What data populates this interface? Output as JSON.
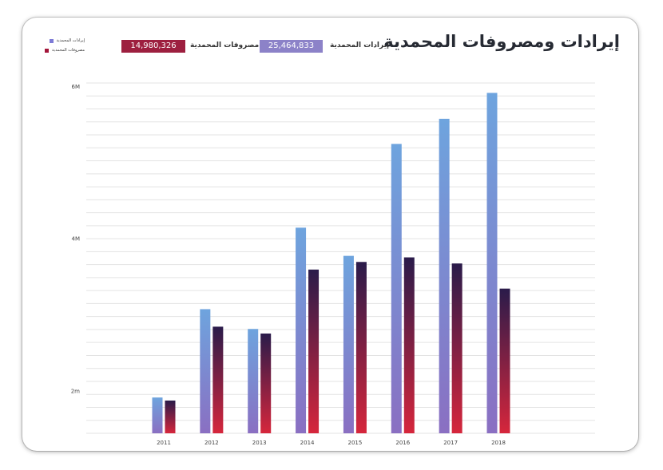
{
  "header": {
    "title": "إيرادات ومصروفات المحمدية",
    "kpi_revenue_label": "إيرادات المحمدية",
    "kpi_revenue_value": "25,464,833",
    "kpi_expense_label": "مصروفات المحمدية",
    "kpi_expense_value": "14,980,326"
  },
  "legend": {
    "items": [
      {
        "label": "إيرادات المحمدية",
        "color": "#7d7bd6"
      },
      {
        "label": "مصروفات المحمدية",
        "color": "#a3153a"
      }
    ]
  },
  "colors": {
    "revenue_top": "#6ea4de",
    "revenue_bottom": "#8a6fc2",
    "expense_top": "#2a1b4a",
    "expense_bottom": "#d6263c"
  },
  "chart_data": {
    "type": "bar",
    "categories": [
      "2011",
      "2012",
      "2013",
      "2014",
      "2015",
      "2016",
      "2017",
      "2018"
    ],
    "series": [
      {
        "name": "إيرادات المحمدية",
        "values": [
          1.92,
          3.08,
          2.82,
          4.15,
          3.78,
          5.25,
          5.58,
          5.92
        ]
      },
      {
        "name": "مصروفات المحمدية",
        "values": [
          1.88,
          2.85,
          2.76,
          3.6,
          3.7,
          3.76,
          3.68,
          3.35
        ]
      }
    ],
    "yticks": [
      {
        "value": 2,
        "label": "2m"
      },
      {
        "value": 4,
        "label": "4M"
      },
      {
        "value": 6,
        "label": "6M"
      }
    ],
    "ylim": [
      1.45,
      6.05
    ],
    "grid": true
  }
}
